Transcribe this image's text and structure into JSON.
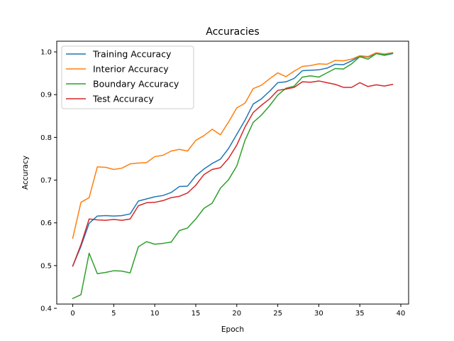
{
  "chart_data": {
    "type": "line",
    "title": "Accuracies",
    "xlabel": "Epoch",
    "ylabel": "Accuracy",
    "xlim": [
      -1.95,
      40.95
    ],
    "ylim": [
      0.41,
      1.025
    ],
    "xticks": [
      0,
      5,
      10,
      15,
      20,
      25,
      30,
      35,
      40
    ],
    "yticks": [
      0.4,
      0.5,
      0.6,
      0.7,
      0.8,
      0.9,
      1.0
    ],
    "xtick_labels": [
      "0",
      "5",
      "10",
      "15",
      "20",
      "25",
      "30",
      "35",
      "40"
    ],
    "ytick_labels": [
      "0.4",
      "0.5",
      "0.6",
      "0.7",
      "0.8",
      "0.9",
      "1.0"
    ],
    "grid": false,
    "legend_position": "top-left",
    "x": [
      0,
      1,
      2,
      3,
      4,
      5,
      6,
      7,
      8,
      9,
      10,
      11,
      12,
      13,
      14,
      15,
      16,
      17,
      18,
      19,
      20,
      21,
      22,
      23,
      24,
      25,
      26,
      27,
      28,
      29,
      30,
      31,
      32,
      33,
      34,
      35,
      36,
      37,
      38,
      39
    ],
    "series": [
      {
        "name": "Training Accuracy",
        "color": "#1f77b4",
        "values": [
          0.499,
          0.545,
          0.599,
          0.616,
          0.617,
          0.616,
          0.617,
          0.621,
          0.651,
          0.656,
          0.661,
          0.664,
          0.671,
          0.685,
          0.686,
          0.71,
          0.726,
          0.739,
          0.749,
          0.774,
          0.807,
          0.84,
          0.878,
          0.89,
          0.908,
          0.928,
          0.93,
          0.938,
          0.956,
          0.957,
          0.958,
          0.962,
          0.971,
          0.97,
          0.979,
          0.99,
          0.988,
          0.996,
          0.992,
          0.996
        ]
      },
      {
        "name": "Interior Accuracy",
        "color": "#ff7f0e",
        "values": [
          0.564,
          0.648,
          0.659,
          0.731,
          0.73,
          0.725,
          0.728,
          0.738,
          0.74,
          0.741,
          0.755,
          0.758,
          0.768,
          0.772,
          0.768,
          0.793,
          0.804,
          0.819,
          0.806,
          0.836,
          0.869,
          0.88,
          0.914,
          0.922,
          0.937,
          0.951,
          0.942,
          0.955,
          0.966,
          0.968,
          0.972,
          0.971,
          0.98,
          0.979,
          0.983,
          0.991,
          0.989,
          0.998,
          0.995,
          0.998
        ]
      },
      {
        "name": "Boundary Accuracy",
        "color": "#2ca02c",
        "values": [
          0.423,
          0.432,
          0.529,
          0.481,
          0.484,
          0.488,
          0.487,
          0.483,
          0.544,
          0.556,
          0.55,
          0.552,
          0.555,
          0.582,
          0.588,
          0.609,
          0.634,
          0.646,
          0.681,
          0.701,
          0.733,
          0.793,
          0.835,
          0.852,
          0.874,
          0.899,
          0.915,
          0.92,
          0.941,
          0.944,
          0.941,
          0.951,
          0.961,
          0.96,
          0.972,
          0.989,
          0.983,
          0.996,
          0.993,
          0.997
        ]
      },
      {
        "name": "Test Accuracy",
        "color": "#d62728",
        "values": [
          0.499,
          0.549,
          0.609,
          0.607,
          0.606,
          0.608,
          0.606,
          0.609,
          0.64,
          0.647,
          0.648,
          0.652,
          0.659,
          0.662,
          0.67,
          0.688,
          0.713,
          0.725,
          0.729,
          0.751,
          0.782,
          0.824,
          0.858,
          0.875,
          0.89,
          0.91,
          0.913,
          0.917,
          0.93,
          0.929,
          0.932,
          0.928,
          0.924,
          0.917,
          0.917,
          0.928,
          0.919,
          0.923,
          0.92,
          0.924
        ]
      }
    ]
  }
}
